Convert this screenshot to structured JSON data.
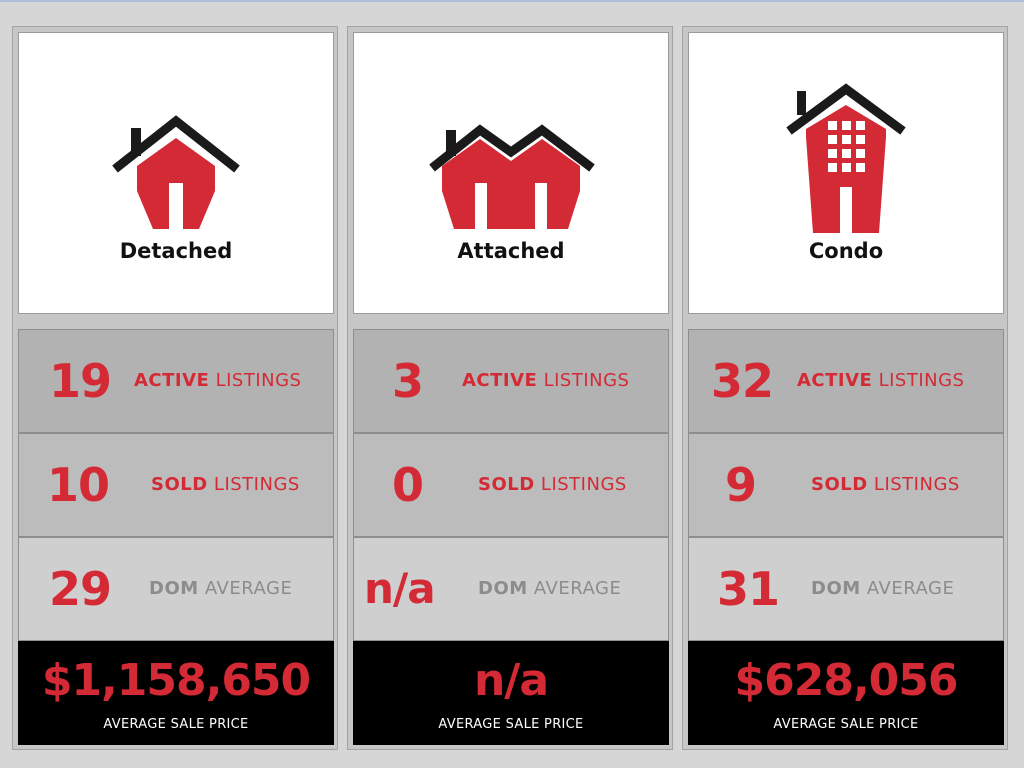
{
  "colors": {
    "accent_red": "#d42a35",
    "label_gray": "#8c8c8c",
    "icon_dark": "#1a1a1a"
  },
  "columns": [
    {
      "type": "Detached",
      "icon": "detached-house-icon",
      "active": {
        "value": "19",
        "bold": "ACTIVE",
        "rest": " LISTINGS"
      },
      "sold": {
        "value": "10",
        "bold": "SOLD",
        "rest": " LISTINGS"
      },
      "dom": {
        "value": "29",
        "bold": "DOM",
        "rest": " AVERAGE"
      },
      "price": {
        "value": "$1,158,650",
        "caption": "AVERAGE SALE PRICE"
      }
    },
    {
      "type": "Attached",
      "icon": "attached-house-icon",
      "active": {
        "value": "3",
        "bold": "ACTIVE",
        "rest": " LISTINGS"
      },
      "sold": {
        "value": "0",
        "bold": "SOLD",
        "rest": " LISTINGS"
      },
      "dom": {
        "value": "n/a",
        "bold": "DOM",
        "rest": " AVERAGE"
      },
      "price": {
        "value": "n/a",
        "caption": "AVERAGE SALE PRICE"
      }
    },
    {
      "type": "Condo",
      "icon": "condo-building-icon",
      "active": {
        "value": "32",
        "bold": "ACTIVE",
        "rest": " LISTINGS"
      },
      "sold": {
        "value": "9",
        "bold": "SOLD",
        "rest": " LISTINGS"
      },
      "dom": {
        "value": "31",
        "bold": "DOM",
        "rest": " AVERAGE"
      },
      "price": {
        "value": "$628,056",
        "caption": "AVERAGE SALE PRICE"
      }
    }
  ]
}
